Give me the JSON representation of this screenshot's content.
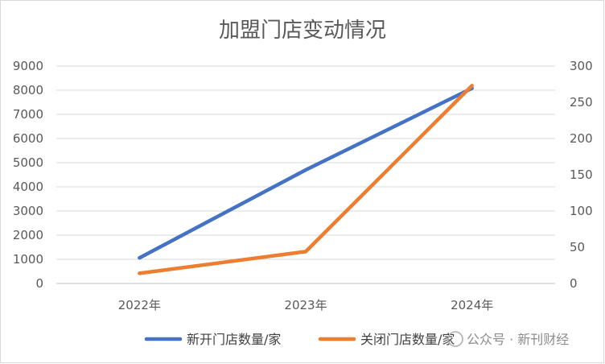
{
  "chart_data": {
    "type": "line",
    "title": "加盟门店变动情况",
    "categories": [
      "2022年",
      "2023年",
      "2024年"
    ],
    "series": [
      {
        "name": "新开门店数量/家",
        "axis": "left",
        "color": "#4472C4",
        "values": [
          1060,
          4700,
          8080
        ]
      },
      {
        "name": "关闭门店数量/家",
        "axis": "right",
        "color": "#ED7D31",
        "values": [
          14,
          44,
          273
        ]
      }
    ],
    "y_left": {
      "ylim": [
        0,
        9000
      ],
      "ticks": [
        "0",
        "1000",
        "2000",
        "3000",
        "4000",
        "5000",
        "6000",
        "7000",
        "8000",
        "9000"
      ]
    },
    "y_right": {
      "ylim": [
        0,
        300
      ],
      "ticks": [
        "0",
        "50",
        "100",
        "150",
        "200",
        "250",
        "300"
      ]
    },
    "grid": true,
    "legend_position": "bottom"
  },
  "watermark": "公众号 · 新刊财经"
}
